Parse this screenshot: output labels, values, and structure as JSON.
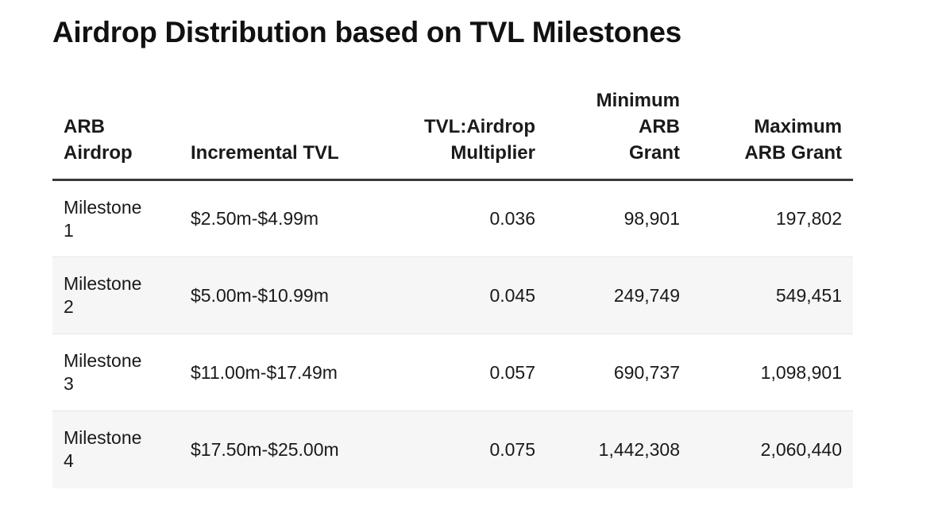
{
  "title": "Airdrop Distribution based on TVL Milestones",
  "table": {
    "headers": [
      [
        "ARB",
        "Airdrop"
      ],
      [
        "Incremental TVL"
      ],
      [
        "TVL:Airdrop",
        "Multiplier"
      ],
      [
        "Minimum",
        "ARB",
        "Grant"
      ],
      [
        "Maximum",
        "ARB Grant"
      ]
    ],
    "rows": [
      {
        "milestone": [
          "Milestone",
          "1"
        ],
        "tvl": "$2.50m-$4.99m",
        "multiplier": "0.036",
        "min_grant": "98,901",
        "max_grant": "197,802"
      },
      {
        "milestone": [
          "Milestone",
          "2"
        ],
        "tvl": "$5.00m-$10.99m",
        "multiplier": "0.045",
        "min_grant": "249,749",
        "max_grant": "549,451"
      },
      {
        "milestone": [
          "Milestone",
          "3"
        ],
        "tvl": "$11.00m-$17.49m",
        "multiplier": "0.057",
        "min_grant": "690,737",
        "max_grant": "1,098,901"
      },
      {
        "milestone": [
          "Milestone",
          "4"
        ],
        "tvl": "$17.50m-$25.00m",
        "multiplier": "0.075",
        "min_grant": "1,442,308",
        "max_grant": "2,060,440"
      }
    ]
  }
}
